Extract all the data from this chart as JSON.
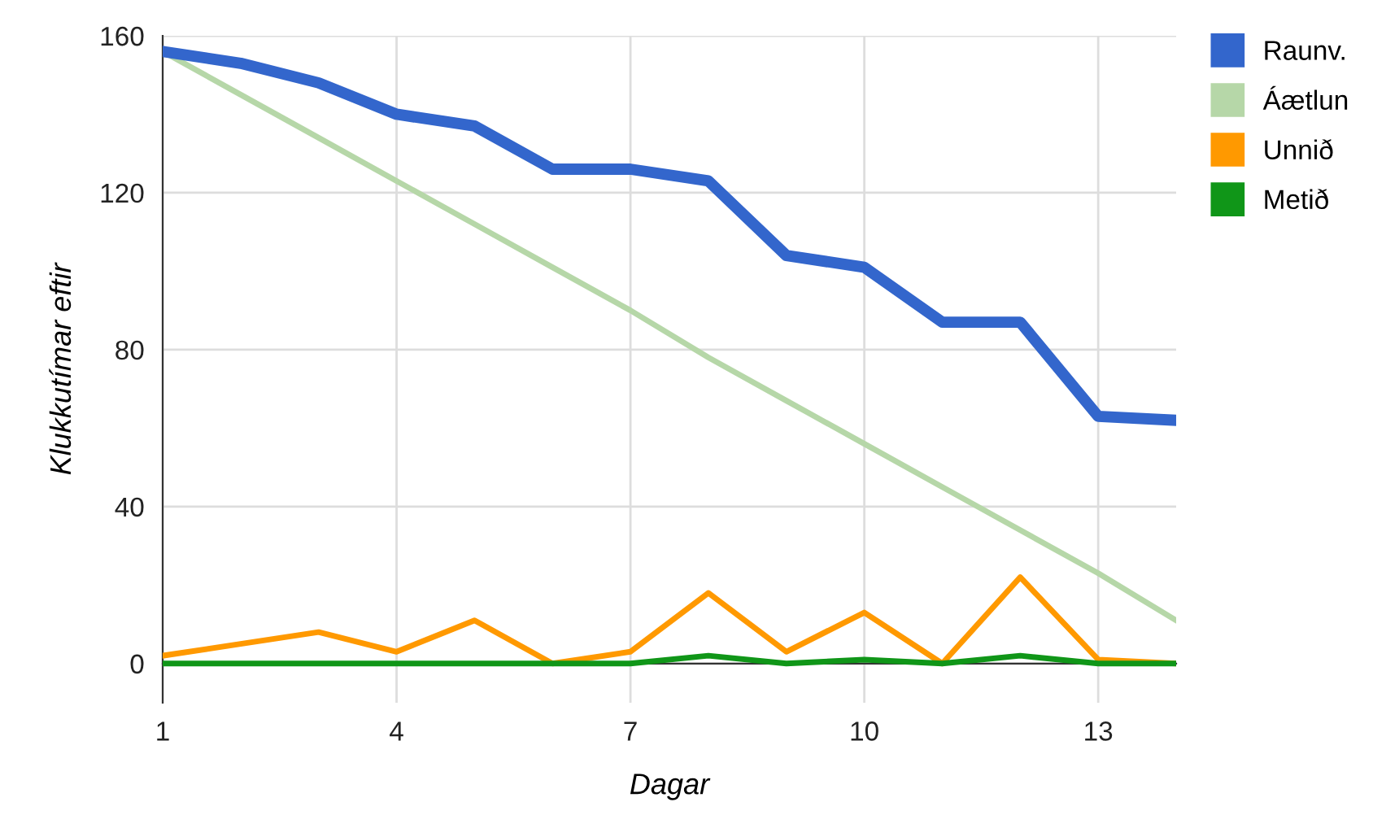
{
  "chart_data": {
    "type": "line",
    "xlabel": "Dagar",
    "ylabel": "Klukkutímar eftir",
    "x": [
      1,
      2,
      3,
      4,
      5,
      6,
      7,
      8,
      9,
      10,
      11,
      12,
      13,
      14
    ],
    "series": [
      {
        "name": "Raunv.",
        "color": "#3366cc",
        "values": [
          156,
          153,
          148,
          140,
          137,
          126,
          126,
          123,
          104,
          101,
          87,
          87,
          63,
          62
        ]
      },
      {
        "name": "Áætlun",
        "color": "#b6d7a8",
        "values": [
          156,
          145,
          134,
          123,
          112,
          101,
          90,
          78,
          67,
          56,
          45,
          34,
          23,
          11
        ]
      },
      {
        "name": "Unnið",
        "color": "#ff9900",
        "values": [
          2,
          5,
          8,
          3,
          11,
          0,
          3,
          18,
          3,
          13,
          0,
          22,
          1,
          0
        ]
      },
      {
        "name": "Metið",
        "color": "#109618",
        "values": [
          0,
          0,
          0,
          0,
          0,
          0,
          0,
          2,
          0,
          1,
          0,
          2,
          0,
          0
        ]
      }
    ],
    "xlim": [
      1,
      14
    ],
    "ylim": [
      -10,
      160
    ],
    "xticks": [
      1,
      4,
      7,
      10,
      13
    ],
    "yticks": [
      0,
      40,
      80,
      120,
      160
    ],
    "grid": true,
    "legend": "top right",
    "marker": "none",
    "line_style": "solid"
  }
}
